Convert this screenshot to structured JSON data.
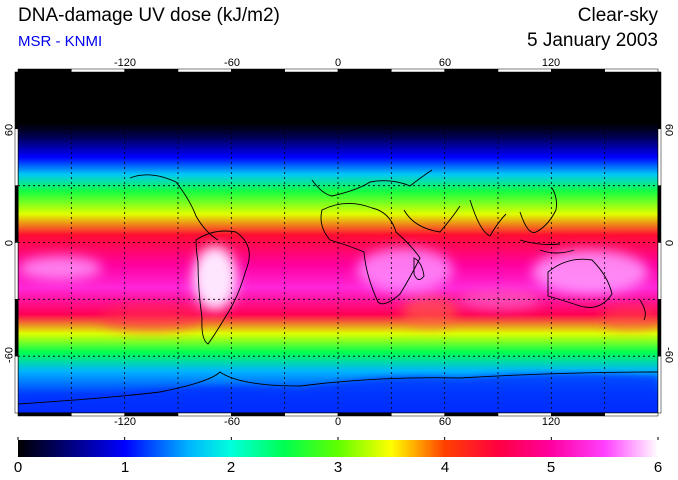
{
  "header": {
    "title": "DNA-damage UV dose (kJ/m2)",
    "subtitle": "MSR - KNMI",
    "condition": "Clear-sky",
    "date": "5 January 2003"
  },
  "map": {
    "projection": "equirectangular",
    "lon_range": [
      -180,
      180
    ],
    "lat_range": [
      -90,
      90
    ],
    "grid_lon_step": 30,
    "grid_lat_step": 30,
    "lon_labels": [
      "-120",
      "-60",
      "0",
      "60",
      "120"
    ],
    "lat_labels": [
      "60",
      "0",
      "-60"
    ],
    "dose_profile_by_latitude": [
      {
        "lat": 90,
        "dose": 0.0
      },
      {
        "lat": 63,
        "dose": 0.0
      },
      {
        "lat": 56,
        "dose": 0.3
      },
      {
        "lat": 45,
        "dose": 1.0
      },
      {
        "lat": 36,
        "dose": 1.7
      },
      {
        "lat": 27,
        "dose": 2.6
      },
      {
        "lat": 15,
        "dose": 3.4
      },
      {
        "lat": 4,
        "dose": 4.4
      },
      {
        "lat": -12,
        "dose": 5.0
      },
      {
        "lat": -24,
        "dose": 5.3
      },
      {
        "lat": -38,
        "dose": 4.6
      },
      {
        "lat": -48,
        "dose": 3.4
      },
      {
        "lat": -58,
        "dose": 2.5
      },
      {
        "lat": -68,
        "dose": 1.6
      },
      {
        "lat": -80,
        "dose": 1.2
      },
      {
        "lat": -90,
        "dose": 1.1
      }
    ]
  },
  "colorbar": {
    "min": 0,
    "max": 6,
    "tick_labels": [
      "0",
      "1",
      "2",
      "3",
      "4",
      "5",
      "6"
    ],
    "stops": [
      {
        "value": 0.0,
        "color": "#000000"
      },
      {
        "value": 0.5,
        "color": "#000080"
      },
      {
        "value": 1.0,
        "color": "#0000ff"
      },
      {
        "value": 1.6,
        "color": "#00b4ff"
      },
      {
        "value": 2.0,
        "color": "#00ffdc"
      },
      {
        "value": 2.5,
        "color": "#00ff50"
      },
      {
        "value": 3.0,
        "color": "#60ff00"
      },
      {
        "value": 3.5,
        "color": "#ffff00"
      },
      {
        "value": 4.0,
        "color": "#ff4000"
      },
      {
        "value": 4.5,
        "color": "#ff0040"
      },
      {
        "value": 5.0,
        "color": "#ff00a0"
      },
      {
        "value": 5.5,
        "color": "#ff40ff"
      },
      {
        "value": 6.0,
        "color": "#ffffff"
      }
    ]
  }
}
